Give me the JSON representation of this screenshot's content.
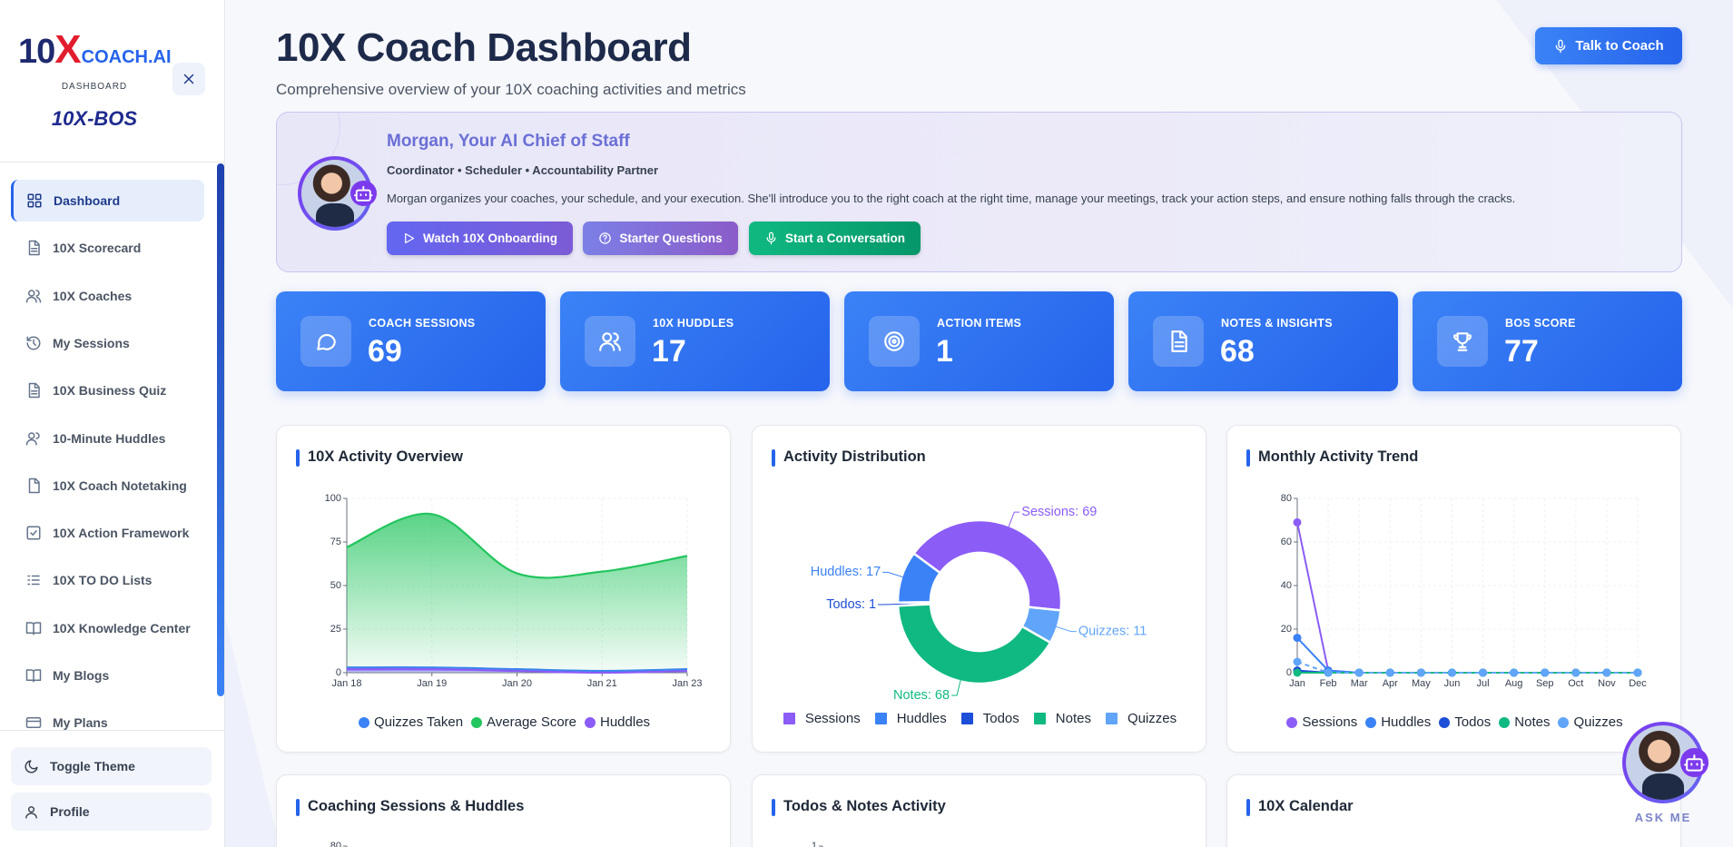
{
  "sidebar": {
    "brand": "10",
    "brand_mark": "X",
    "brand_name": "COACH.AI",
    "caption": "DASHBOARD",
    "product": "10X-BOS",
    "nav": [
      "Dashboard",
      "10X Scorecard",
      "10X Coaches",
      "My Sessions",
      "10X Business Quiz",
      "10-Minute Huddles",
      "10X Coach Notetaking",
      "10X Action Framework",
      "10X TO DO Lists",
      "10X Knowledge Center",
      "My Blogs",
      "My Plans"
    ],
    "footer": [
      "Toggle Theme",
      "Profile"
    ]
  },
  "header": {
    "title": "10X Coach Dashboard",
    "subtitle": "Comprehensive overview of your 10X coaching activities and metrics",
    "button": "Talk to Coach"
  },
  "assistant": {
    "name": "Morgan, Your AI Chief of Staff",
    "roles": "Coordinator • Scheduler • Accountability Partner",
    "description": "Morgan organizes your coaches, your schedule, and your execution. She'll introduce you to the right coach at the right time, manage your meetings, track your action steps, and ensure nothing falls through the cracks.",
    "buttons": [
      "Watch 10X Onboarding",
      "Starter Questions",
      "Start a Conversation"
    ]
  },
  "stats": [
    {
      "label": "COACH SESSIONS",
      "value": 69
    },
    {
      "label": "10X HUDDLES",
      "value": 17
    },
    {
      "label": "ACTION ITEMS",
      "value": 1
    },
    {
      "label": "NOTES & INSIGHTS",
      "value": 68
    },
    {
      "label": "BOS SCORE",
      "value": 77
    }
  ],
  "chart_data": [
    {
      "type": "area",
      "title": "10X Activity Overview",
      "categories": [
        "Jan 18",
        "Jan 19",
        "Jan 20",
        "Jan 21",
        "Jan 23"
      ],
      "ylim": [
        0,
        100
      ],
      "yticks": [
        0,
        25,
        50,
        75,
        100
      ],
      "grid": true,
      "series": [
        {
          "name": "Quizzes Taken",
          "color": "#3b82f6",
          "values": [
            3,
            3,
            2,
            1,
            2
          ]
        },
        {
          "name": "Average Score",
          "color": "#22c55e",
          "values": [
            72,
            91,
            57,
            58,
            67
          ]
        },
        {
          "name": "Huddles",
          "color": "#8b5cf6",
          "values": [
            2,
            2,
            1,
            0,
            1
          ]
        }
      ]
    },
    {
      "type": "donut",
      "title": "Activity Distribution",
      "categories": [
        "Sessions",
        "Huddles",
        "Todos",
        "Notes",
        "Quizzes"
      ],
      "values": [
        69,
        17,
        1,
        68,
        11
      ],
      "value_labels": [
        "Sessions: 69",
        "Huddles: 17",
        "Todos: 1",
        "Notes: 68",
        "Quizzes: 11"
      ],
      "colors": [
        "#8b5cf6",
        "#3b82f6",
        "#1d4ed8",
        "#10b981",
        "#60a5fa"
      ]
    },
    {
      "type": "line",
      "title": "Monthly Activity Trend",
      "categories": [
        "Jan",
        "Feb",
        "Mar",
        "Apr",
        "May",
        "Jun",
        "Jul",
        "Aug",
        "Sep",
        "Oct",
        "Nov",
        "Dec"
      ],
      "ylim": [
        0,
        80
      ],
      "yticks": [
        0,
        20,
        40,
        60,
        80
      ],
      "grid": true,
      "series": [
        {
          "name": "Sessions",
          "color": "#8b5cf6",
          "values": [
            69,
            1,
            0,
            0,
            0,
            0,
            0,
            0,
            0,
            0,
            0,
            0
          ]
        },
        {
          "name": "Huddles",
          "color": "#3b82f6",
          "values": [
            16,
            1,
            0,
            0,
            0,
            0,
            0,
            0,
            0,
            0,
            0,
            0
          ]
        },
        {
          "name": "Todos",
          "color": "#1d4ed8",
          "values": [
            1,
            0,
            0,
            0,
            0,
            0,
            0,
            0,
            0,
            0,
            0,
            0
          ]
        },
        {
          "name": "Notes",
          "color": "#10b981",
          "values": [
            0,
            0,
            0,
            0,
            0,
            0,
            0,
            0,
            0,
            0,
            0,
            0
          ]
        },
        {
          "name": "Quizzes",
          "color": "#60a5fa",
          "values": [
            5,
            0,
            0,
            0,
            0,
            0,
            0,
            0,
            0,
            0,
            0,
            0
          ]
        }
      ]
    }
  ],
  "more_cards": [
    {
      "title": "Coaching Sessions & Huddles",
      "yticks": [
        80
      ]
    },
    {
      "title": "Todos & Notes Activity",
      "yticks": [
        1
      ]
    },
    {
      "title": "10X Calendar"
    }
  ],
  "ask_me": "ASK ME"
}
